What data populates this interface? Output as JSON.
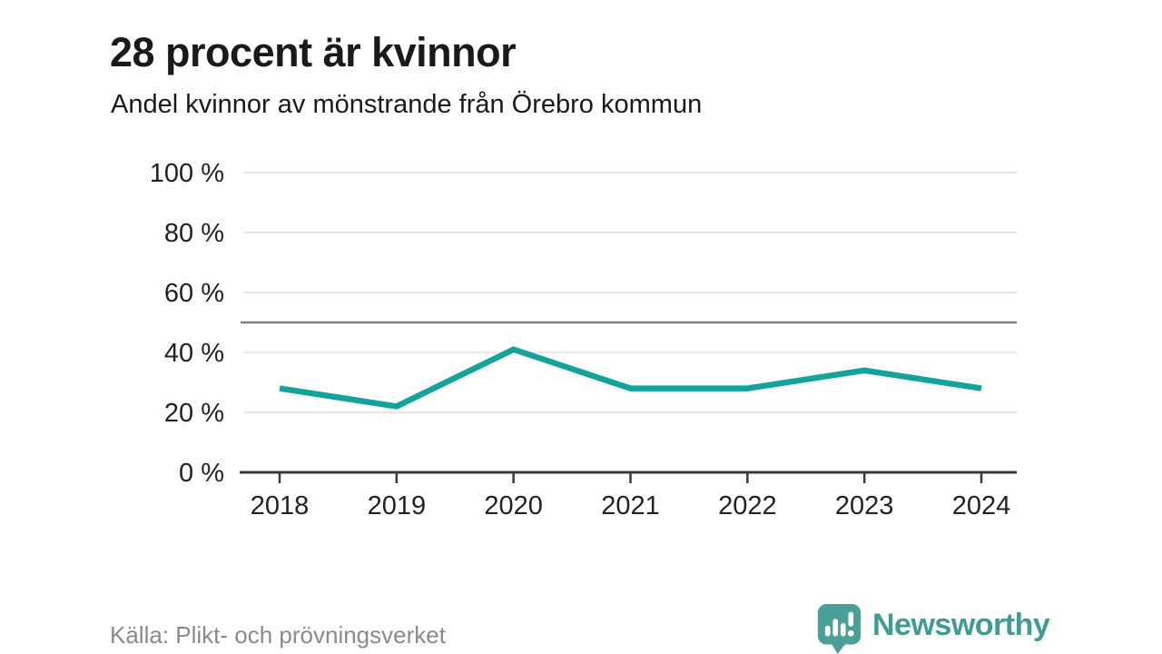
{
  "header": {
    "title": "28 procent är kvinnor",
    "subtitle": "Andel kvinnor av mönstrande från Örebro kommun"
  },
  "chart_data": {
    "type": "line",
    "title": "28 procent är kvinnor",
    "subtitle": "Andel kvinnor av mönstrande från Örebro kommun",
    "x": [
      2018,
      2019,
      2020,
      2021,
      2022,
      2023,
      2024
    ],
    "series": [
      {
        "name": "Andel kvinnor av mönstrande",
        "values": [
          28,
          22,
          41,
          28,
          28,
          34,
          28
        ]
      }
    ],
    "xlabel": "",
    "ylabel": "",
    "ylim": [
      0,
      100
    ],
    "yticks": [
      0,
      20,
      40,
      60,
      80,
      100
    ],
    "ytick_suffix": " %",
    "reference_line": 50,
    "grid": true,
    "legend": "none",
    "colors": {
      "line": "#12a39a",
      "gridline": "#e1e1e1",
      "reference_line": "#7f7f7f",
      "axis": "#3a3a3a",
      "tick_label": "#222222"
    }
  },
  "footer": {
    "source": "Källa: Plikt- och prövningsverket",
    "brand": "Newsworthy",
    "brand_color": "#3e9c93",
    "logo_icon": "newsworthy-speech-bubble-bar-chart-icon"
  }
}
